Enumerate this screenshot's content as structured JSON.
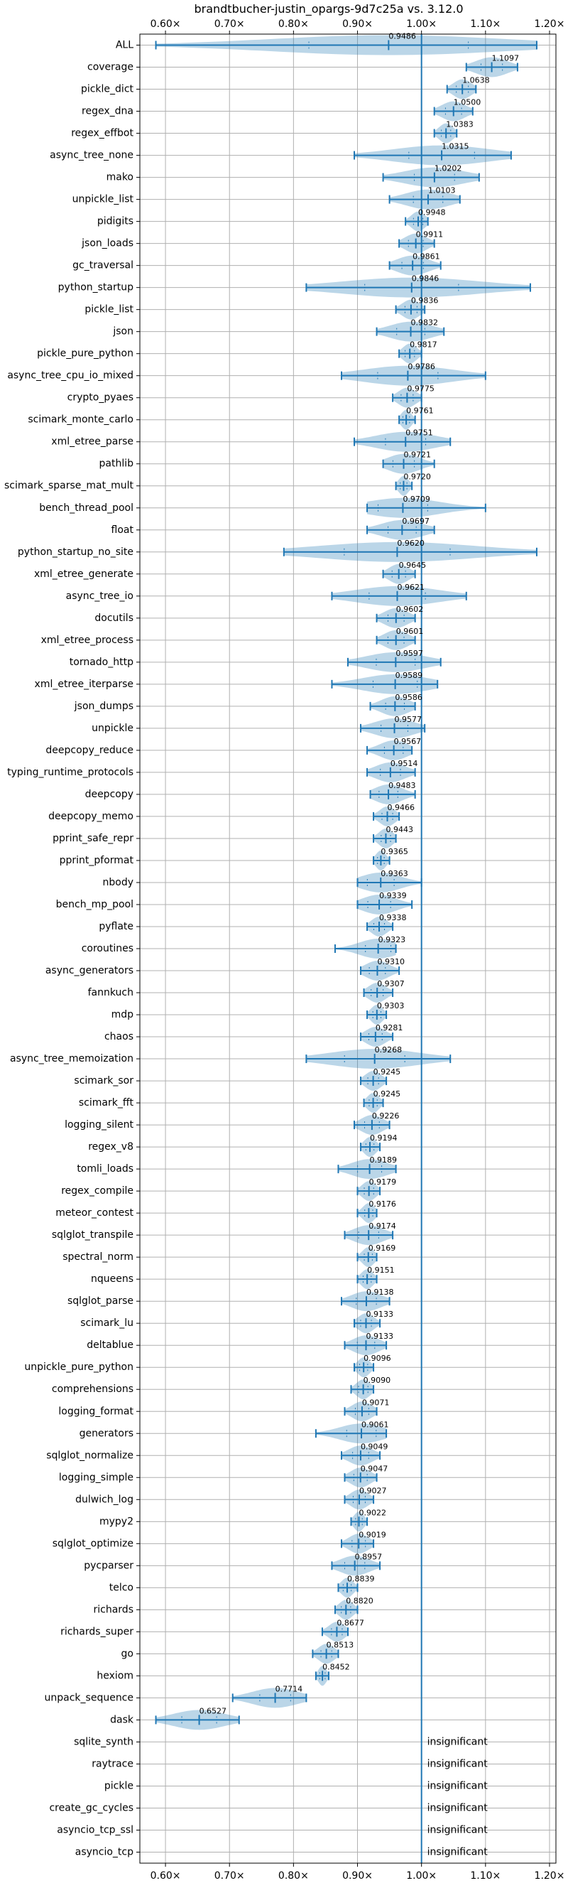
{
  "chart_data": {
    "type": "violin",
    "title": "brandtbucher-justin_opargs-9d7c25a vs. 3.12.0",
    "xlabel": "",
    "ylabel": "",
    "xlim": [
      0.56,
      1.21
    ],
    "x_ticks": [
      0.6,
      0.7,
      0.8,
      0.9,
      1.0,
      1.1,
      1.2
    ],
    "x_tick_labels": [
      "0.60×",
      "0.70×",
      "0.80×",
      "0.90×",
      "1.00×",
      "1.10×",
      "1.20×"
    ],
    "reference_x": 1.0,
    "grid": true,
    "insignificant_label": "insignificant",
    "benchmarks": [
      {
        "name": "ALL",
        "value": 0.9486,
        "label": "0.9486",
        "min": 0.585,
        "max": 1.18
      },
      {
        "name": "coverage",
        "value": 1.1097,
        "label": "1.1097",
        "min": 1.07,
        "max": 1.15
      },
      {
        "name": "pickle_dict",
        "value": 1.0638,
        "label": "1.0638",
        "min": 1.04,
        "max": 1.085
      },
      {
        "name": "regex_dna",
        "value": 1.05,
        "label": "1.0500",
        "min": 1.02,
        "max": 1.08
      },
      {
        "name": "regex_effbot",
        "value": 1.0383,
        "label": "1.0383",
        "min": 1.02,
        "max": 1.055
      },
      {
        "name": "async_tree_none",
        "value": 1.0315,
        "label": "1.0315",
        "min": 0.895,
        "max": 1.14
      },
      {
        "name": "mako",
        "value": 1.0202,
        "label": "1.0202",
        "min": 0.94,
        "max": 1.09
      },
      {
        "name": "unpickle_list",
        "value": 1.0103,
        "label": "1.0103",
        "min": 0.95,
        "max": 1.06
      },
      {
        "name": "pidigits",
        "value": 0.9948,
        "label": "0.9948",
        "min": 0.975,
        "max": 1.01
      },
      {
        "name": "json_loads",
        "value": 0.9911,
        "label": "0.9911",
        "min": 0.965,
        "max": 1.02
      },
      {
        "name": "gc_traversal",
        "value": 0.9861,
        "label": "0.9861",
        "min": 0.95,
        "max": 1.03
      },
      {
        "name": "python_startup",
        "value": 0.9846,
        "label": "0.9846",
        "min": 0.82,
        "max": 1.17
      },
      {
        "name": "pickle_list",
        "value": 0.9836,
        "label": "0.9836",
        "min": 0.96,
        "max": 1.005
      },
      {
        "name": "json",
        "value": 0.9832,
        "label": "0.9832",
        "min": 0.93,
        "max": 1.035
      },
      {
        "name": "pickle_pure_python",
        "value": 0.9817,
        "label": "0.9817",
        "min": 0.965,
        "max": 1.0
      },
      {
        "name": "async_tree_cpu_io_mixed",
        "value": 0.9786,
        "label": "0.9786",
        "min": 0.875,
        "max": 1.1
      },
      {
        "name": "crypto_pyaes",
        "value": 0.9775,
        "label": "0.9775",
        "min": 0.955,
        "max": 1.0
      },
      {
        "name": "scimark_monte_carlo",
        "value": 0.9761,
        "label": "0.9761",
        "min": 0.965,
        "max": 0.99
      },
      {
        "name": "xml_etree_parse",
        "value": 0.9751,
        "label": "0.9751",
        "min": 0.895,
        "max": 1.045
      },
      {
        "name": "pathlib",
        "value": 0.9721,
        "label": "0.9721",
        "min": 0.94,
        "max": 1.02
      },
      {
        "name": "scimark_sparse_mat_mult",
        "value": 0.972,
        "label": "0.9720",
        "min": 0.96,
        "max": 0.985
      },
      {
        "name": "bench_thread_pool",
        "value": 0.9709,
        "label": "0.9709",
        "min": 0.915,
        "max": 1.1
      },
      {
        "name": "float",
        "value": 0.9697,
        "label": "0.9697",
        "min": 0.915,
        "max": 1.02
      },
      {
        "name": "python_startup_no_site",
        "value": 0.962,
        "label": "0.9620",
        "min": 0.785,
        "max": 1.18
      },
      {
        "name": "xml_etree_generate",
        "value": 0.9645,
        "label": "0.9645",
        "min": 0.94,
        "max": 0.99
      },
      {
        "name": "async_tree_io",
        "value": 0.9621,
        "label": "0.9621",
        "min": 0.86,
        "max": 1.07
      },
      {
        "name": "docutils",
        "value": 0.9602,
        "label": "0.9602",
        "min": 0.93,
        "max": 0.99
      },
      {
        "name": "xml_etree_process",
        "value": 0.9601,
        "label": "0.9601",
        "min": 0.93,
        "max": 0.99
      },
      {
        "name": "tornado_http",
        "value": 0.9597,
        "label": "0.9597",
        "min": 0.885,
        "max": 1.03
      },
      {
        "name": "xml_etree_iterparse",
        "value": 0.9589,
        "label": "0.9589",
        "min": 0.86,
        "max": 1.025
      },
      {
        "name": "json_dumps",
        "value": 0.9586,
        "label": "0.9586",
        "min": 0.92,
        "max": 0.99
      },
      {
        "name": "unpickle",
        "value": 0.9577,
        "label": "0.9577",
        "min": 0.905,
        "max": 1.005
      },
      {
        "name": "deepcopy_reduce",
        "value": 0.9567,
        "label": "0.9567",
        "min": 0.915,
        "max": 0.985
      },
      {
        "name": "typing_runtime_protocols",
        "value": 0.9514,
        "label": "0.9514",
        "min": 0.915,
        "max": 0.99
      },
      {
        "name": "deepcopy",
        "value": 0.9483,
        "label": "0.9483",
        "min": 0.92,
        "max": 0.99
      },
      {
        "name": "deepcopy_memo",
        "value": 0.9466,
        "label": "0.9466",
        "min": 0.925,
        "max": 0.965
      },
      {
        "name": "pprint_safe_repr",
        "value": 0.9443,
        "label": "0.9443",
        "min": 0.925,
        "max": 0.96
      },
      {
        "name": "pprint_pformat",
        "value": 0.9365,
        "label": "0.9365",
        "min": 0.925,
        "max": 0.95
      },
      {
        "name": "nbody",
        "value": 0.9363,
        "label": "0.9363",
        "min": 0.9,
        "max": 1.0
      },
      {
        "name": "bench_mp_pool",
        "value": 0.9339,
        "label": "0.9339",
        "min": 0.9,
        "max": 0.985
      },
      {
        "name": "pyflate",
        "value": 0.9338,
        "label": "0.9338",
        "min": 0.915,
        "max": 0.955
      },
      {
        "name": "coroutines",
        "value": 0.9323,
        "label": "0.9323",
        "min": 0.865,
        "max": 0.96
      },
      {
        "name": "async_generators",
        "value": 0.931,
        "label": "0.9310",
        "min": 0.905,
        "max": 0.965
      },
      {
        "name": "fannkuch",
        "value": 0.9307,
        "label": "0.9307",
        "min": 0.91,
        "max": 0.955
      },
      {
        "name": "mdp",
        "value": 0.9303,
        "label": "0.9303",
        "min": 0.915,
        "max": 0.945
      },
      {
        "name": "chaos",
        "value": 0.9281,
        "label": "0.9281",
        "min": 0.905,
        "max": 0.955
      },
      {
        "name": "async_tree_memoization",
        "value": 0.9268,
        "label": "0.9268",
        "min": 0.82,
        "max": 1.045
      },
      {
        "name": "scimark_sor",
        "value": 0.9245,
        "label": "0.9245",
        "min": 0.905,
        "max": 0.945
      },
      {
        "name": "scimark_fft",
        "value": 0.9245,
        "label": "0.9245",
        "min": 0.91,
        "max": 0.94
      },
      {
        "name": "logging_silent",
        "value": 0.9226,
        "label": "0.9226",
        "min": 0.895,
        "max": 0.95
      },
      {
        "name": "regex_v8",
        "value": 0.9194,
        "label": "0.9194",
        "min": 0.905,
        "max": 0.935
      },
      {
        "name": "tomli_loads",
        "value": 0.9189,
        "label": "0.9189",
        "min": 0.87,
        "max": 0.96
      },
      {
        "name": "regex_compile",
        "value": 0.9179,
        "label": "0.9179",
        "min": 0.9,
        "max": 0.935
      },
      {
        "name": "meteor_contest",
        "value": 0.9176,
        "label": "0.9176",
        "min": 0.9,
        "max": 0.93
      },
      {
        "name": "sqlglot_transpile",
        "value": 0.9174,
        "label": "0.9174",
        "min": 0.88,
        "max": 0.955
      },
      {
        "name": "spectral_norm",
        "value": 0.9169,
        "label": "0.9169",
        "min": 0.9,
        "max": 0.93
      },
      {
        "name": "nqueens",
        "value": 0.9151,
        "label": "0.9151",
        "min": 0.9,
        "max": 0.93
      },
      {
        "name": "sqlglot_parse",
        "value": 0.9138,
        "label": "0.9138",
        "min": 0.875,
        "max": 0.95
      },
      {
        "name": "scimark_lu",
        "value": 0.9133,
        "label": "0.9133",
        "min": 0.895,
        "max": 0.935
      },
      {
        "name": "deltablue",
        "value": 0.9133,
        "label": "0.9133",
        "min": 0.88,
        "max": 0.945
      },
      {
        "name": "unpickle_pure_python",
        "value": 0.9096,
        "label": "0.9096",
        "min": 0.895,
        "max": 0.925
      },
      {
        "name": "comprehensions",
        "value": 0.909,
        "label": "0.9090",
        "min": 0.89,
        "max": 0.925
      },
      {
        "name": "logging_format",
        "value": 0.9071,
        "label": "0.9071",
        "min": 0.88,
        "max": 0.93
      },
      {
        "name": "generators",
        "value": 0.9061,
        "label": "0.9061",
        "min": 0.835,
        "max": 0.945
      },
      {
        "name": "sqlglot_normalize",
        "value": 0.9049,
        "label": "0.9049",
        "min": 0.875,
        "max": 0.935
      },
      {
        "name": "logging_simple",
        "value": 0.9047,
        "label": "0.9047",
        "min": 0.88,
        "max": 0.93
      },
      {
        "name": "dulwich_log",
        "value": 0.9027,
        "label": "0.9027",
        "min": 0.88,
        "max": 0.925
      },
      {
        "name": "mypy2",
        "value": 0.9022,
        "label": "0.9022",
        "min": 0.89,
        "max": 0.915
      },
      {
        "name": "sqlglot_optimize",
        "value": 0.9019,
        "label": "0.9019",
        "min": 0.875,
        "max": 0.925
      },
      {
        "name": "pycparser",
        "value": 0.8957,
        "label": "0.8957",
        "min": 0.86,
        "max": 0.935
      },
      {
        "name": "telco",
        "value": 0.8839,
        "label": "0.8839",
        "min": 0.87,
        "max": 0.9
      },
      {
        "name": "richards",
        "value": 0.882,
        "label": "0.8820",
        "min": 0.865,
        "max": 0.9
      },
      {
        "name": "richards_super",
        "value": 0.8677,
        "label": "0.8677",
        "min": 0.845,
        "max": 0.885
      },
      {
        "name": "go",
        "value": 0.8513,
        "label": "0.8513",
        "min": 0.83,
        "max": 0.87
      },
      {
        "name": "hexiom",
        "value": 0.8452,
        "label": "0.8452",
        "min": 0.835,
        "max": 0.855
      },
      {
        "name": "unpack_sequence",
        "value": 0.7714,
        "label": "0.7714",
        "min": 0.705,
        "max": 0.82
      },
      {
        "name": "dask",
        "value": 0.6527,
        "label": "0.6527",
        "min": 0.585,
        "max": 0.715
      },
      {
        "name": "sqlite_synth",
        "insignificant": true
      },
      {
        "name": "raytrace",
        "insignificant": true
      },
      {
        "name": "pickle",
        "insignificant": true
      },
      {
        "name": "create_gc_cycles",
        "insignificant": true
      },
      {
        "name": "asyncio_tcp_ssl",
        "insignificant": true
      },
      {
        "name": "asyncio_tcp",
        "insignificant": true
      }
    ]
  }
}
